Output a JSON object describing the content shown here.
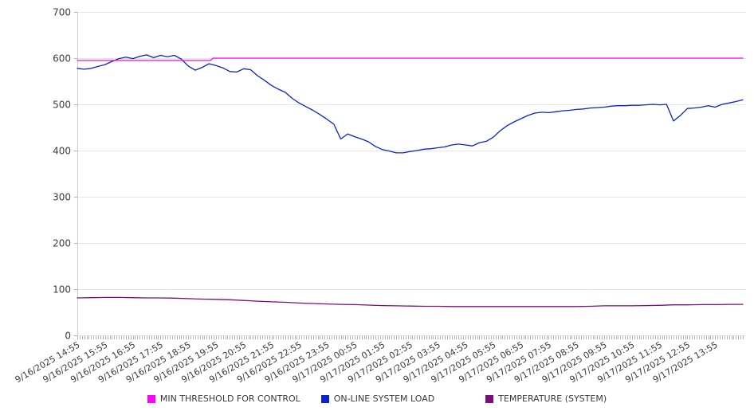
{
  "chart_data": {
    "type": "line",
    "title": "",
    "xlabel": "",
    "ylabel": "",
    "x_axis": {
      "unit": "time",
      "range_minutes": 1440,
      "minor_tick_every_minutes": 5,
      "tick_every_minutes": 60,
      "tick_labels": [
        "9/16/2025 14:55",
        "9/16/2025 15:55",
        "9/16/2025 16:55",
        "9/16/2025 17:55",
        "9/16/2025 18:55",
        "9/16/2025 19:55",
        "9/16/2025 20:55",
        "9/16/2025 21:55",
        "9/16/2025 22:55",
        "9/16/2025 23:55",
        "9/17/2025 00:55",
        "9/17/2025 01:55",
        "9/17/2025 02:55",
        "9/17/2025 03:55",
        "9/17/2025 04:55",
        "9/17/2025 05:55",
        "9/17/2025 06:55",
        "9/17/2025 07:55",
        "9/17/2025 08:55",
        "9/17/2025 09:55",
        "9/17/2025 10:55",
        "9/17/2025 11:55",
        "9/17/2025 12:55",
        "9/17/2025 13:55"
      ]
    },
    "y_axis": {
      "min": 0,
      "max": 700,
      "tick_step": 100,
      "ticks": [
        0,
        100,
        200,
        300,
        400,
        500,
        600,
        700
      ]
    },
    "grid": "horizontal",
    "legend_position": "bottom",
    "colors": {
      "grid": "#e6e6e6",
      "axis": "#cccccc",
      "tick": "#b3b3b3",
      "label": "#3c3c3c"
    },
    "series": [
      {
        "name": "MIN THRESHOLD FOR CONTROL",
        "color": "#ff00ff",
        "points": [
          [
            0,
            595
          ],
          [
            288,
            595
          ],
          [
            294,
            600
          ],
          [
            1440,
            600
          ]
        ]
      },
      {
        "name": "ON-LINE SYSTEM LOAD",
        "color": "#0b23cb",
        "points": [
          [
            0,
            578
          ],
          [
            15,
            576
          ],
          [
            30,
            578
          ],
          [
            45,
            582
          ],
          [
            60,
            586
          ],
          [
            75,
            593
          ],
          [
            90,
            599
          ],
          [
            105,
            602
          ],
          [
            120,
            599
          ],
          [
            135,
            604
          ],
          [
            150,
            607
          ],
          [
            165,
            601
          ],
          [
            180,
            606
          ],
          [
            195,
            603
          ],
          [
            210,
            606
          ],
          [
            225,
            598
          ],
          [
            240,
            583
          ],
          [
            255,
            574
          ],
          [
            270,
            580
          ],
          [
            285,
            588
          ],
          [
            300,
            584
          ],
          [
            315,
            579
          ],
          [
            330,
            571
          ],
          [
            345,
            570
          ],
          [
            360,
            577
          ],
          [
            375,
            575
          ],
          [
            390,
            562
          ],
          [
            405,
            552
          ],
          [
            420,
            541
          ],
          [
            435,
            533
          ],
          [
            450,
            526
          ],
          [
            465,
            513
          ],
          [
            480,
            503
          ],
          [
            495,
            495
          ],
          [
            510,
            487
          ],
          [
            525,
            478
          ],
          [
            540,
            468
          ],
          [
            555,
            457
          ],
          [
            570,
            425
          ],
          [
            585,
            436
          ],
          [
            600,
            430
          ],
          [
            615,
            425
          ],
          [
            630,
            419
          ],
          [
            645,
            409
          ],
          [
            660,
            402
          ],
          [
            675,
            399
          ],
          [
            690,
            395
          ],
          [
            705,
            395
          ],
          [
            720,
            398
          ],
          [
            735,
            400
          ],
          [
            750,
            403
          ],
          [
            765,
            404
          ],
          [
            780,
            406
          ],
          [
            795,
            408
          ],
          [
            810,
            412
          ],
          [
            825,
            414
          ],
          [
            840,
            412
          ],
          [
            855,
            410
          ],
          [
            870,
            417
          ],
          [
            885,
            420
          ],
          [
            900,
            429
          ],
          [
            915,
            443
          ],
          [
            930,
            454
          ],
          [
            945,
            462
          ],
          [
            960,
            469
          ],
          [
            975,
            476
          ],
          [
            990,
            481
          ],
          [
            1005,
            483
          ],
          [
            1020,
            482
          ],
          [
            1035,
            484
          ],
          [
            1050,
            486
          ],
          [
            1065,
            487
          ],
          [
            1080,
            489
          ],
          [
            1095,
            490
          ],
          [
            1110,
            492
          ],
          [
            1125,
            493
          ],
          [
            1140,
            494
          ],
          [
            1155,
            496
          ],
          [
            1170,
            497
          ],
          [
            1185,
            497
          ],
          [
            1200,
            498
          ],
          [
            1215,
            498
          ],
          [
            1230,
            499
          ],
          [
            1245,
            500
          ],
          [
            1260,
            499
          ],
          [
            1275,
            500
          ],
          [
            1290,
            464
          ],
          [
            1305,
            476
          ],
          [
            1320,
            491
          ],
          [
            1335,
            492
          ],
          [
            1350,
            494
          ],
          [
            1365,
            497
          ],
          [
            1380,
            494
          ],
          [
            1395,
            500
          ],
          [
            1410,
            503
          ],
          [
            1425,
            506
          ],
          [
            1440,
            510
          ]
        ]
      },
      {
        "name": "TEMPERATURE (SYSTEM)",
        "color": "#7d0c7d",
        "points": [
          [
            0,
            81
          ],
          [
            30,
            81.5
          ],
          [
            60,
            82
          ],
          [
            90,
            82
          ],
          [
            120,
            81.5
          ],
          [
            150,
            81
          ],
          [
            180,
            81
          ],
          [
            210,
            80.5
          ],
          [
            240,
            79.5
          ],
          [
            270,
            78.5
          ],
          [
            300,
            78
          ],
          [
            330,
            77
          ],
          [
            360,
            75.5
          ],
          [
            390,
            74
          ],
          [
            420,
            72.5
          ],
          [
            450,
            71.5
          ],
          [
            480,
            70
          ],
          [
            510,
            69
          ],
          [
            540,
            68
          ],
          [
            570,
            67
          ],
          [
            600,
            66.5
          ],
          [
            630,
            65.5
          ],
          [
            660,
            64.5
          ],
          [
            690,
            64
          ],
          [
            720,
            63.5
          ],
          [
            750,
            63
          ],
          [
            780,
            63
          ],
          [
            810,
            62.5
          ],
          [
            840,
            62.5
          ],
          [
            870,
            62.5
          ],
          [
            900,
            62.5
          ],
          [
            930,
            62.5
          ],
          [
            960,
            62.5
          ],
          [
            990,
            62.5
          ],
          [
            1020,
            62.5
          ],
          [
            1050,
            62.5
          ],
          [
            1080,
            62.5
          ],
          [
            1110,
            63
          ],
          [
            1140,
            64
          ],
          [
            1170,
            64
          ],
          [
            1200,
            64
          ],
          [
            1230,
            64.5
          ],
          [
            1260,
            65
          ],
          [
            1290,
            66
          ],
          [
            1320,
            66
          ],
          [
            1350,
            66.5
          ],
          [
            1380,
            66.5
          ],
          [
            1410,
            67
          ],
          [
            1440,
            67
          ]
        ]
      }
    ]
  }
}
